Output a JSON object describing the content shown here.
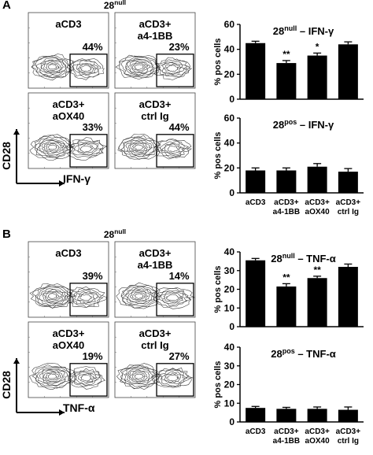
{
  "panels": [
    {
      "letter": "A",
      "group_title_main": "28",
      "group_title_sup": "null",
      "marker": "IFN-γ",
      "ylabel": "CD28",
      "flow_plots": [
        {
          "label_lines": [
            "aCD3"
          ],
          "percent": "44%"
        },
        {
          "label_lines": [
            "aCD3+",
            "a4-1BB"
          ],
          "percent": "23%"
        },
        {
          "label_lines": [
            "aCD3+",
            "aOX40"
          ],
          "percent": "33%"
        },
        {
          "label_lines": [
            "aCD3+",
            "ctrl Ig"
          ],
          "percent": "44%"
        }
      ]
    },
    {
      "letter": "B",
      "group_title_main": "28",
      "group_title_sup": "null",
      "marker": "TNF-α",
      "ylabel": "CD28",
      "flow_plots": [
        {
          "label_lines": [
            "aCD3"
          ],
          "percent": "39%"
        },
        {
          "label_lines": [
            "aCD3+",
            "a4-1BB"
          ],
          "percent": "14%"
        },
        {
          "label_lines": [
            "aCD3+",
            "aOX40"
          ],
          "percent": "19%"
        },
        {
          "label_lines": [
            "aCD3+",
            "ctrl Ig"
          ],
          "percent": "27%"
        }
      ]
    }
  ],
  "chart_data": [
    {
      "type": "bar",
      "title_main": "28",
      "title_sup": "null",
      "title_rest": " – IFN-γ",
      "ylabel": "% pos cells",
      "ylim": [
        0,
        60
      ],
      "yticks": [
        0,
        20,
        40,
        60
      ],
      "categories": [
        [
          "aCD3"
        ],
        [
          "aCD3+",
          "a4-1BB"
        ],
        [
          "aCD3+",
          "aOX40"
        ],
        [
          "aCD3+",
          "ctrl Ig"
        ]
      ],
      "show_category_labels": false,
      "values": [
        45,
        29,
        35,
        44
      ],
      "errors": [
        1.5,
        2,
        2,
        2
      ],
      "significance": [
        "",
        "**",
        "*",
        ""
      ],
      "bar_color": "#000000"
    },
    {
      "type": "bar",
      "title_main": "28",
      "title_sup": "pos",
      "title_rest": " – IFN-γ",
      "ylabel": "% pos cells",
      "ylim": [
        0,
        60
      ],
      "yticks": [
        0,
        20,
        40,
        60
      ],
      "categories": [
        [
          "aCD3"
        ],
        [
          "aCD3+",
          "a4-1BB"
        ],
        [
          "aCD3+",
          "aOX40"
        ],
        [
          "aCD3+",
          "ctrl Ig"
        ]
      ],
      "show_category_labels": true,
      "values": [
        18,
        18,
        21,
        17
      ],
      "errors": [
        2,
        2,
        2.5,
        2.5
      ],
      "significance": [
        "",
        "",
        "",
        ""
      ],
      "bar_color": "#000000"
    },
    {
      "type": "bar",
      "title_main": "28",
      "title_sup": "null",
      "title_rest": " – TNF-α",
      "ylabel": "% pos cells",
      "ylim": [
        0,
        40
      ],
      "yticks": [
        0,
        10,
        20,
        30,
        40
      ],
      "categories": [
        [
          "aCD3"
        ],
        [
          "aCD3+",
          "a4-1BB"
        ],
        [
          "aCD3+",
          "aOX40"
        ],
        [
          "aCD3+",
          "ctrl Ig"
        ]
      ],
      "show_category_labels": false,
      "values": [
        35.5,
        21.5,
        26,
        32
      ],
      "errors": [
        1,
        1.5,
        1,
        1.5
      ],
      "significance": [
        "",
        "**",
        "**",
        ""
      ],
      "bar_color": "#000000"
    },
    {
      "type": "bar",
      "title_main": "28",
      "title_sup": "pos",
      "title_rest": " – TNF-α",
      "ylabel": "% pos cells",
      "ylim": [
        0,
        40
      ],
      "yticks": [
        0,
        10,
        20,
        30,
        40
      ],
      "categories": [
        [
          "aCD3"
        ],
        [
          "aCD3+",
          "a4-1BB"
        ],
        [
          "aCD3+",
          "aOX40"
        ],
        [
          "aCD3+",
          "ctrl Ig"
        ]
      ],
      "show_category_labels": true,
      "values": [
        7.5,
        7,
        7,
        6.5
      ],
      "errors": [
        0.8,
        0.8,
        1,
        1.5
      ],
      "significance": [
        "",
        "",
        "",
        ""
      ],
      "bar_color": "#000000"
    }
  ]
}
